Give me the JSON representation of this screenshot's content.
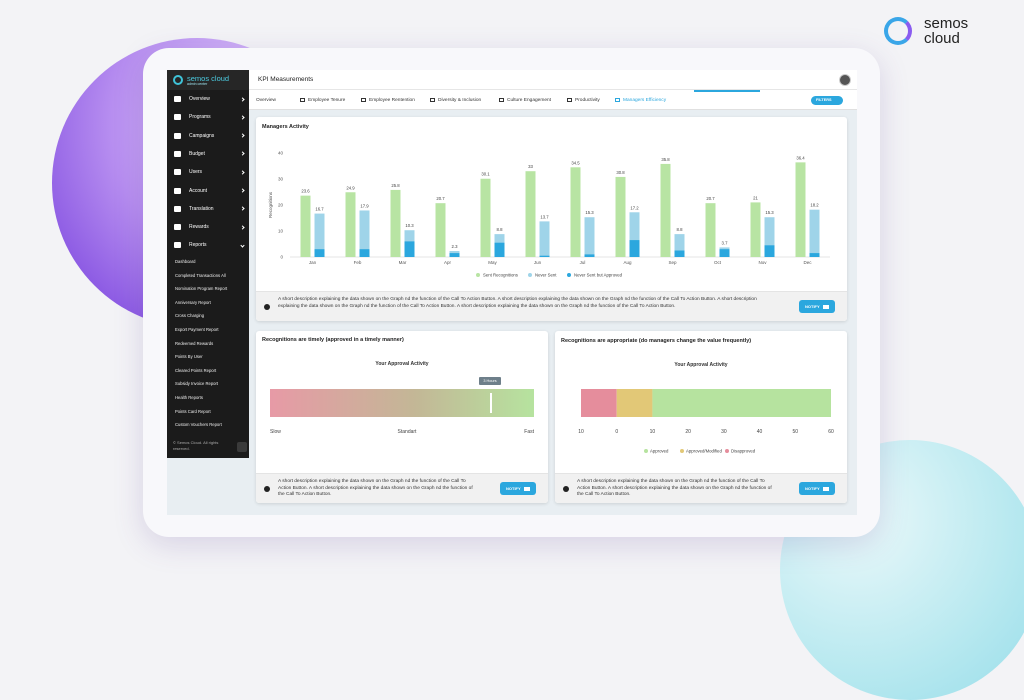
{
  "brand": {
    "logo_text": "semos cloud",
    "sidebar_name": "semos cloud",
    "sidebar_sub": "admin center"
  },
  "sidebar": {
    "menu": [
      "Overview",
      "Programs",
      "Campaigns",
      "Budget",
      "Users",
      "Account",
      "Translation",
      "Rewards",
      "Reports"
    ],
    "submenu": [
      "Dashboard",
      "Completed Transactions All",
      "Nomination Program Report",
      "Anniversary Report",
      "Cross Charging",
      "Export Payment Report",
      "Redeemed Rewards",
      "Points By User",
      "Cleared Points Report",
      "Subsidy Invoice Report",
      "Health Reports",
      "Points Card Report",
      "Custom Vouchers Report"
    ],
    "footer": "© Semos Cloud. All rights reserved."
  },
  "header": {
    "title": "KPI Measurements"
  },
  "tabs": [
    "Overview",
    "Employee Tenure",
    "Employee Rentention",
    "Diversity & Inclusion",
    "Culture Engagement",
    "Productivity",
    "Managers Efficiency"
  ],
  "filters": "FILTERS",
  "cards": [
    {
      "description": "A short description explaining the data shown on the Graph nd the function of the Call To Action Button. A short description explaining the data shown on the Graph nd the function of the Call To Action Button. A short description explaining the data shown on the Graph nd the function of the Call To Action Button. A short description explaining the data shown on the Graph nd the function of the Call To Action Button.",
      "button": "NOTIFY"
    },
    {
      "title": "Recognitions are timely (approved in a timely manner)",
      "subtitle": "Your Approval Activity",
      "marker_label": "3 Hours",
      "scale_labels": [
        "Slow",
        "Standart",
        "Fast"
      ],
      "description": "A short description explaining the data shown on the Graph nd the function of the Call To Action Button. A short description explaining the data shown on the Graph nd the function of the Call To Action Button.",
      "button": "NOTIFY"
    },
    {
      "description": "A short description explaining the data shown on the Graph nd the function of the Call To Action Button. A short description explaining the data shown on the Graph nd the function of the Call To Action Button.",
      "button": "NOTIFY"
    }
  ],
  "chart_data": [
    {
      "type": "bar",
      "title": "Managers Activity",
      "y_label": "Recognitions",
      "categories": [
        "Jan",
        "Feb",
        "Mar",
        "Apr",
        "May",
        "Jun",
        "Jul",
        "Aug",
        "Sep",
        "Oct",
        "Nov",
        "Dec"
      ],
      "series": [
        {
          "name": "Sent Recognitions",
          "color": "#b8e4a3",
          "values": [
            23.6,
            24.9,
            25.8,
            20.7,
            30.1,
            33,
            34.5,
            30.8,
            35.8,
            20.7,
            21,
            36.4
          ]
        },
        {
          "name": "Never Sent",
          "color": "#9fd4e9",
          "values": [
            16.7,
            17.9,
            10.3,
            2.3,
            8.8,
            13.7,
            15.3,
            17.2,
            8.8,
            3.7,
            15.3,
            18.2
          ]
        },
        {
          "name": "Never Sent but Approved",
          "color": "#2ba7de",
          "values": [
            3,
            3,
            6,
            1.5,
            5.5,
            0.5,
            1,
            6.5,
            2.5,
            3,
            4.5,
            1.5
          ]
        }
      ],
      "ylim": [
        0,
        40
      ],
      "yticks": [
        0,
        10,
        20,
        30,
        40
      ],
      "grid": false
    },
    {
      "type": "hbar_stacked",
      "title": "Recognitions are appropriate (do managers change the value frequently)",
      "subtitle": "Your Approval Activity",
      "series": [
        {
          "name": "Approved",
          "color": "#b6e39f",
          "values": [
            50
          ]
        },
        {
          "name": "Approved/Modified",
          "color": "#e2c877",
          "values": [
            10
          ]
        },
        {
          "name": "Disapproved",
          "color": "#e58d9c",
          "values": [
            -10
          ]
        }
      ],
      "xlim": [
        -10,
        60
      ],
      "xticks": [
        {
          "value": -10,
          "label": "10"
        },
        0,
        10,
        20,
        30,
        40,
        50,
        60
      ],
      "grid": false
    }
  ]
}
